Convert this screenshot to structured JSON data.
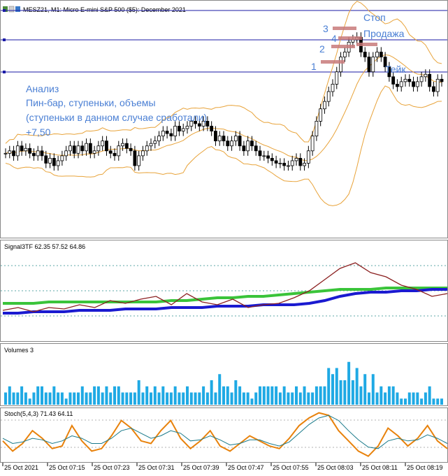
{
  "chart_data": [
    {
      "type": "candlestick",
      "title": "MESZ21, M1:  Micro E-mini S&P 500 ($5): December 2021",
      "horizontal_lines": 3,
      "annotations": {
        "analysis": [
          "Анализ",
          "Пин-бар, ступеньки, объемы",
          "(ступеньки в данном случае сработали)",
          "+7,50"
        ],
        "stop": "Стоп",
        "sell": "Продажа",
        "take": "Тейк",
        "steps": [
          "1",
          "2",
          "3",
          "4"
        ]
      },
      "colors": {
        "bullish": "#ffffff",
        "bearish": "#000000",
        "bands": "#e8a33a",
        "lines": "#1a1aa6",
        "marker": "#c87a7a",
        "note": "#4a7fd4"
      },
      "series": [
        {
          "name": "price",
          "values": [
            45,
            46,
            44,
            48,
            46,
            47,
            45,
            44,
            46,
            44,
            41,
            43,
            40,
            42,
            44,
            46,
            48,
            45,
            48,
            46,
            49,
            45,
            46,
            48,
            50,
            46,
            45,
            44,
            48,
            49,
            47,
            46,
            40,
            44,
            46,
            48,
            49,
            50,
            52,
            54,
            53,
            52,
            56,
            54,
            55,
            56,
            58,
            57,
            56,
            58,
            56,
            54,
            50,
            52,
            50,
            48,
            50,
            52,
            48,
            46,
            50,
            48,
            46,
            44,
            44,
            43,
            42,
            41,
            41,
            40,
            40,
            42,
            43,
            40,
            41,
            46,
            52,
            58,
            63,
            66,
            70,
            73,
            78,
            84,
            86,
            90,
            91,
            92,
            86,
            84,
            78,
            84,
            86,
            84,
            80,
            76,
            73,
            72,
            74,
            75,
            74,
            72,
            74,
            76,
            77,
            72,
            70,
            75,
            74
          ]
        }
      ]
    },
    {
      "type": "line",
      "title": "Signal3TF 62.35 57.52 64.86",
      "series": [
        {
          "name": "",
          "color": "#3ac43a",
          "values": [
            53,
            53,
            53,
            54,
            54,
            54,
            54,
            54,
            54,
            54,
            54,
            55,
            55,
            56,
            57,
            57,
            58,
            58,
            59,
            60,
            61,
            62,
            63,
            63,
            63,
            64,
            64,
            64,
            64,
            64
          ]
        },
        {
          "name": "",
          "color": "#1a1ad0",
          "values": [
            46,
            46,
            47,
            47,
            47,
            48,
            48,
            48,
            49,
            49,
            49,
            50,
            50,
            50,
            51,
            51,
            51,
            52,
            52,
            52,
            53,
            55,
            58,
            60,
            61,
            61,
            62,
            62,
            63,
            63
          ]
        },
        {
          "name": "",
          "color": "#8b2020",
          "values": [
            48,
            50,
            47,
            50,
            49,
            52,
            50,
            55,
            53,
            56,
            58,
            52,
            60,
            54,
            52,
            56,
            50,
            52,
            53,
            57,
            62,
            70,
            78,
            82,
            75,
            72,
            66,
            63,
            58,
            60
          ]
        }
      ]
    },
    {
      "type": "bar",
      "title": "Volumes 3",
      "series": [
        {
          "name": "",
          "values": [
            2,
            3,
            2,
            2,
            3,
            2,
            1,
            2,
            3,
            3,
            2,
            2,
            3,
            2,
            2,
            1,
            2,
            2,
            2,
            3,
            2,
            2,
            3,
            3,
            2,
            3,
            2,
            3,
            3,
            2,
            2,
            2,
            2,
            4,
            2,
            3,
            2,
            3,
            2,
            3,
            2,
            2,
            3,
            2,
            2,
            3,
            2,
            2,
            2,
            3,
            2,
            4,
            2,
            5,
            3,
            3,
            2,
            4,
            3,
            2,
            2,
            1,
            2,
            3,
            3,
            3,
            3,
            3,
            2,
            3,
            2,
            2,
            3,
            2,
            3,
            2,
            2,
            3,
            3,
            3,
            6,
            5,
            6,
            4,
            4,
            7,
            4,
            6,
            3,
            5,
            2,
            5,
            2,
            3,
            2,
            3,
            3,
            2,
            1,
            1,
            2,
            2,
            2,
            1,
            2,
            3,
            1,
            1,
            1
          ]
        }
      ]
    },
    {
      "type": "line",
      "title": "Stoch(5,4,3) 71.43 64.11",
      "ylim": [
        0,
        100
      ],
      "series": [
        {
          "name": "",
          "color": "#e8820c",
          "values": [
            40,
            20,
            35,
            60,
            45,
            25,
            30,
            70,
            40,
            20,
            25,
            50,
            80,
            65,
            40,
            35,
            60,
            80,
            45,
            25,
            40,
            60,
            30,
            20,
            35,
            50,
            40,
            30,
            25,
            45,
            70,
            85,
            95,
            90,
            60,
            40,
            20,
            10,
            30,
            65,
            50,
            30,
            45,
            70,
            40,
            25
          ]
        },
        {
          "name": "",
          "color": "#1a7a8a",
          "values": [
            45,
            35,
            38,
            45,
            42,
            35,
            40,
            50,
            45,
            35,
            35,
            45,
            60,
            65,
            55,
            45,
            50,
            60,
            55,
            40,
            42,
            50,
            42,
            32,
            35,
            42,
            42,
            35,
            30,
            38,
            55,
            72,
            85,
            90,
            80,
            60,
            42,
            28,
            25,
            40,
            45,
            40,
            42,
            52,
            45,
            35
          ]
        }
      ]
    }
  ],
  "x_ticks": [
    "25 Oct 2021",
    "25 Oct 07:15",
    "25 Oct 07:23",
    "25 Oct 07:31",
    "25 Oct 07:39",
    "25 Oct 07:47",
    "25 Oct 07:55",
    "25 Oct 08:03",
    "25 Oct 08:11",
    "25 Oct 08:19"
  ]
}
